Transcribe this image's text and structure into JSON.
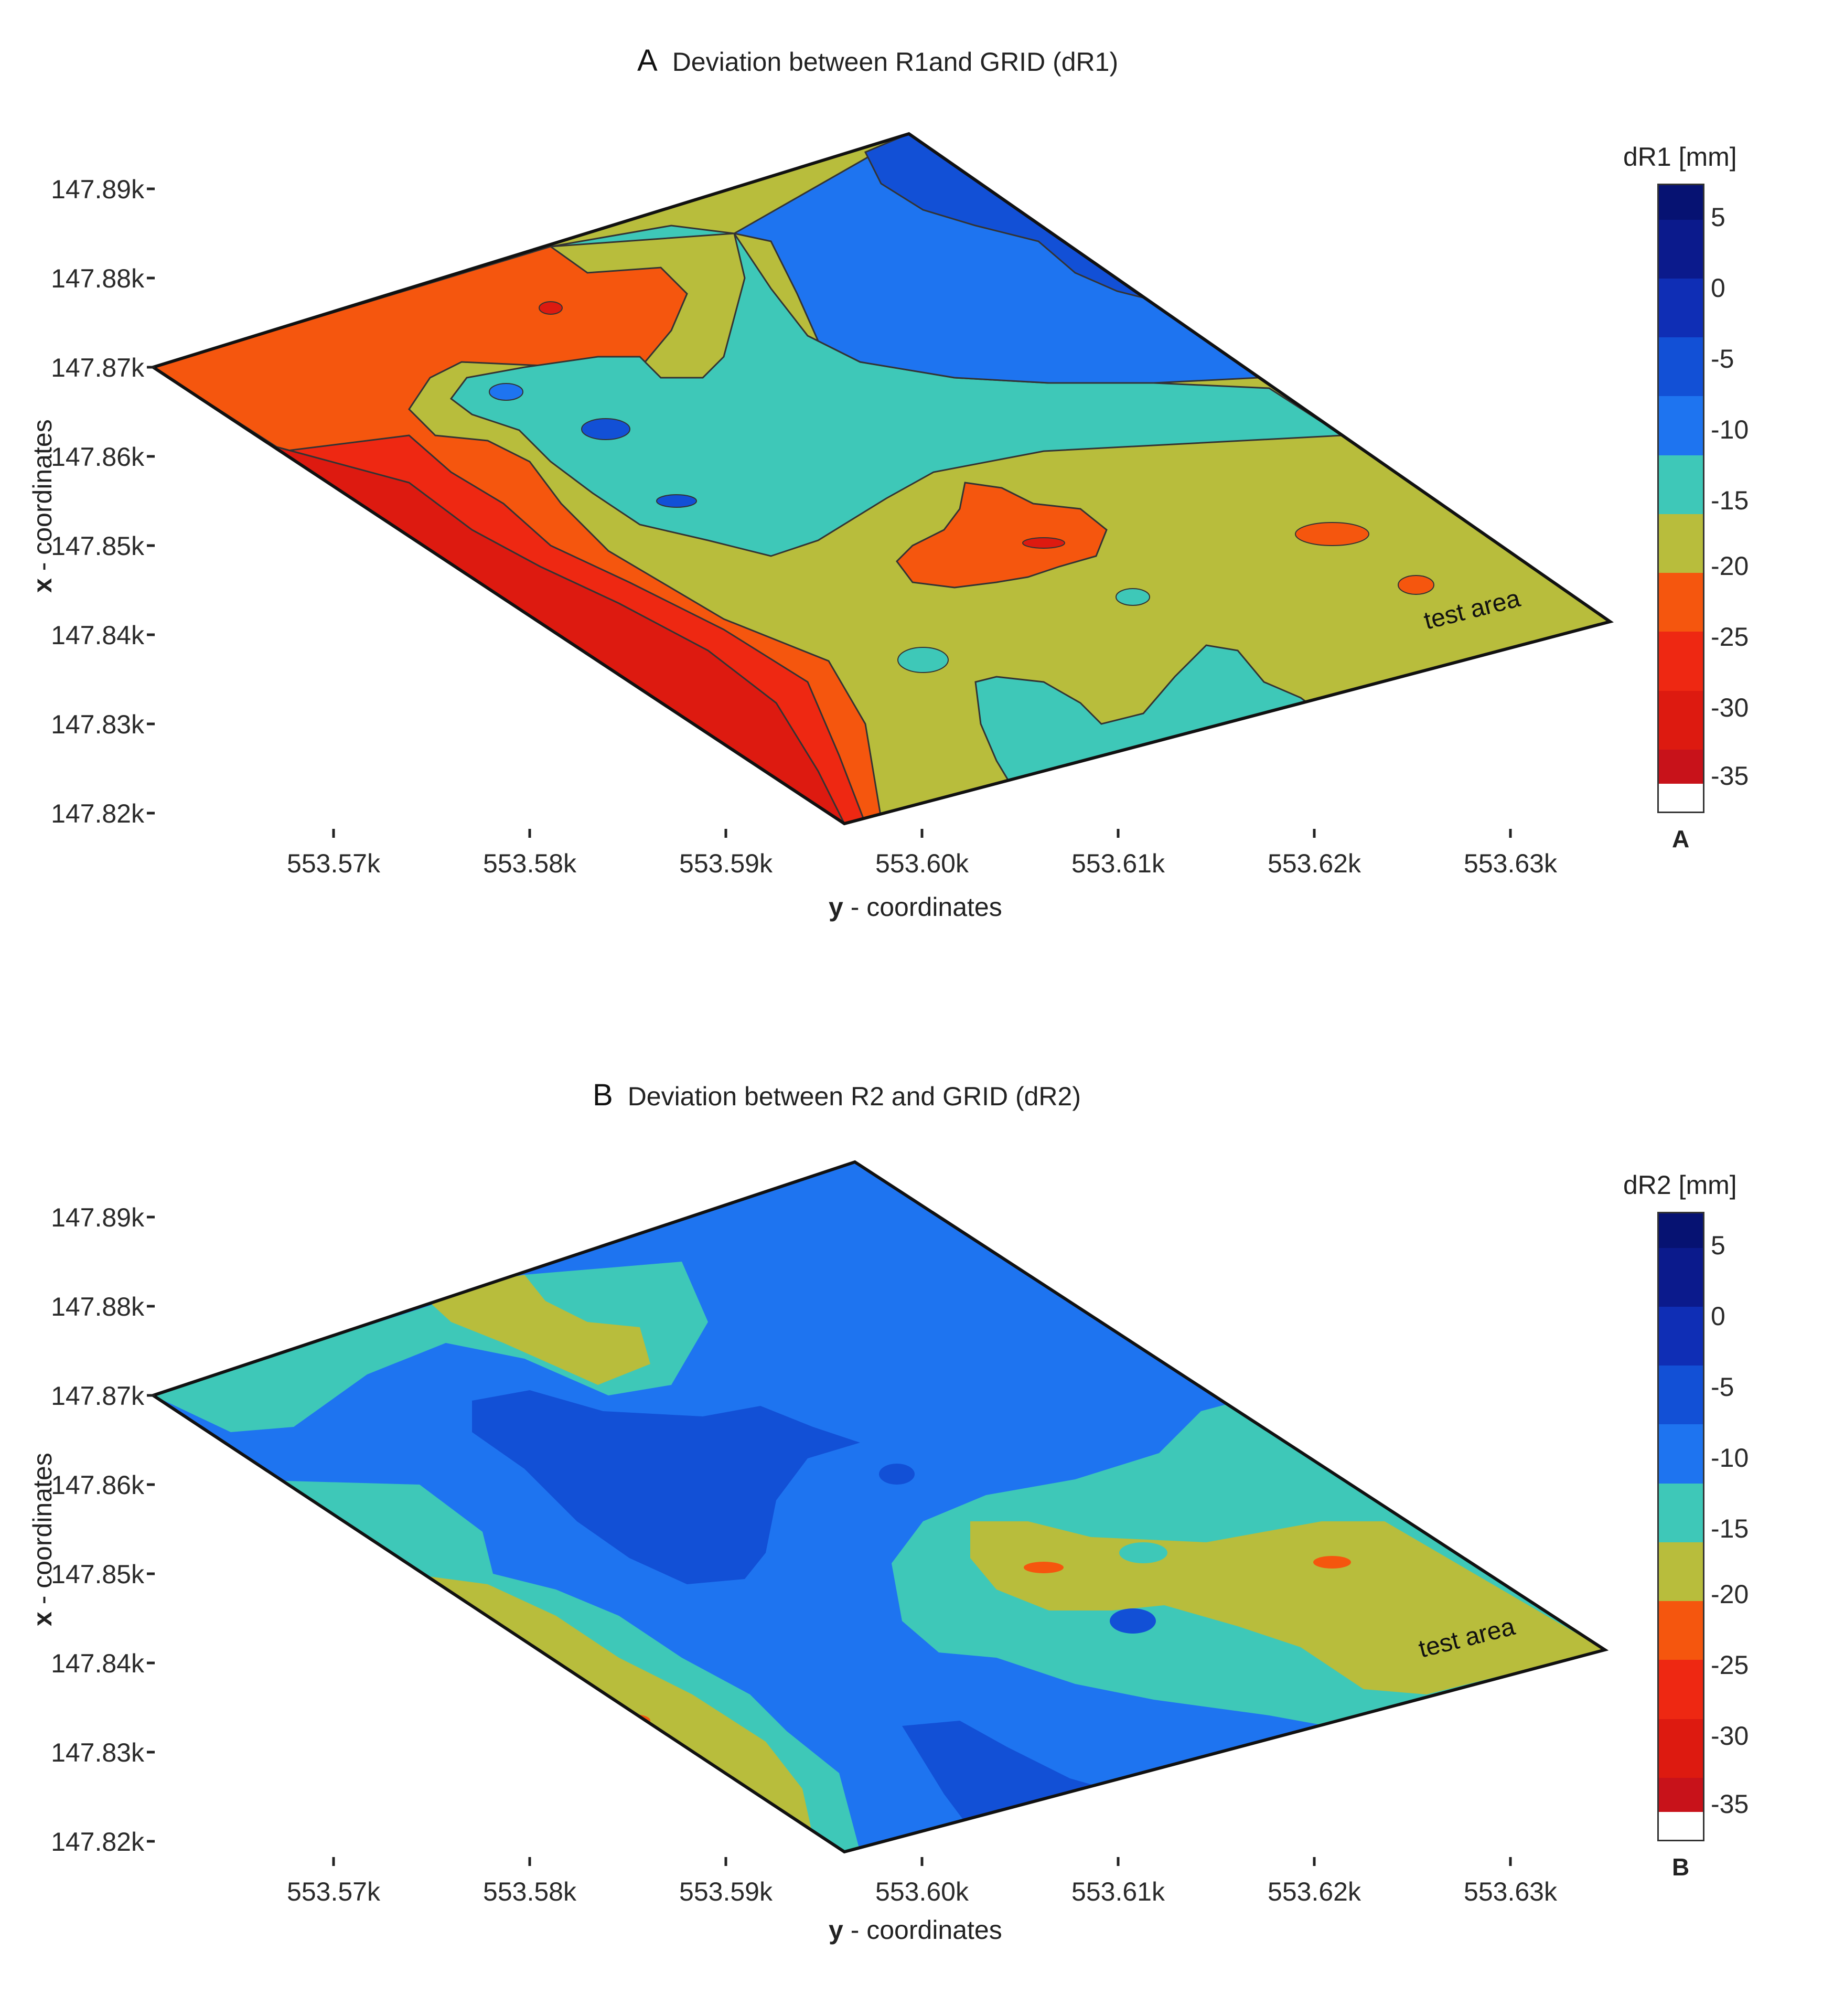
{
  "chart_data": [
    {
      "type": "heatmap",
      "panel_letter": "A",
      "title": "Deviation between R1and GRID (dR1)",
      "xlabel_letter": "y",
      "xlabel_rest": " - coordinates",
      "ylabel_letter": "x",
      "ylabel_rest": " - coordinates",
      "x_ticks": [
        "553.57k",
        "553.58k",
        "553.59k",
        "553.60k",
        "553.61k",
        "553.62k",
        "553.63k"
      ],
      "y_ticks": [
        "147.89k",
        "147.88k",
        "147.87k",
        "147.86k",
        "147.85k",
        "147.84k",
        "147.83k",
        "147.82k"
      ],
      "annotation": "test area",
      "colorbar": {
        "title": "dR1 [mm]",
        "ticks": [
          "5",
          "0",
          "-5",
          "-10",
          "-15",
          "-20",
          "-25",
          "-30",
          "-35"
        ],
        "label": "A",
        "colors": [
          "#0b1a8c",
          "#0f2eb5",
          "#1250d6",
          "#1e74f0",
          "#3ec8b8",
          "#b8bd3c",
          "#f5560e",
          "#ee2812",
          "#dd1a10"
        ]
      }
    },
    {
      "type": "heatmap",
      "panel_letter": "B",
      "title": "Deviation between R2 and GRID (dR2)",
      "xlabel_letter": "y",
      "xlabel_rest": " - coordinates",
      "ylabel_letter": "x",
      "ylabel_rest": " - coordinates",
      "x_ticks": [
        "553.57k",
        "553.58k",
        "553.59k",
        "553.60k",
        "553.61k",
        "553.62k",
        "553.63k"
      ],
      "y_ticks": [
        "147.89k",
        "147.88k",
        "147.87k",
        "147.86k",
        "147.85k",
        "147.84k",
        "147.83k",
        "147.82k"
      ],
      "annotation": "test area",
      "colorbar": {
        "title": "dR2 [mm]",
        "ticks": [
          "5",
          "0",
          "-5",
          "-10",
          "-15",
          "-20",
          "-25",
          "-30",
          "-35"
        ],
        "label": "B",
        "colors": [
          "#0b1a8c",
          "#0f2eb5",
          "#1250d6",
          "#1e74f0",
          "#3ec8b8",
          "#b8bd3c",
          "#f5560e",
          "#ee2812",
          "#dd1a10"
        ]
      }
    }
  ]
}
